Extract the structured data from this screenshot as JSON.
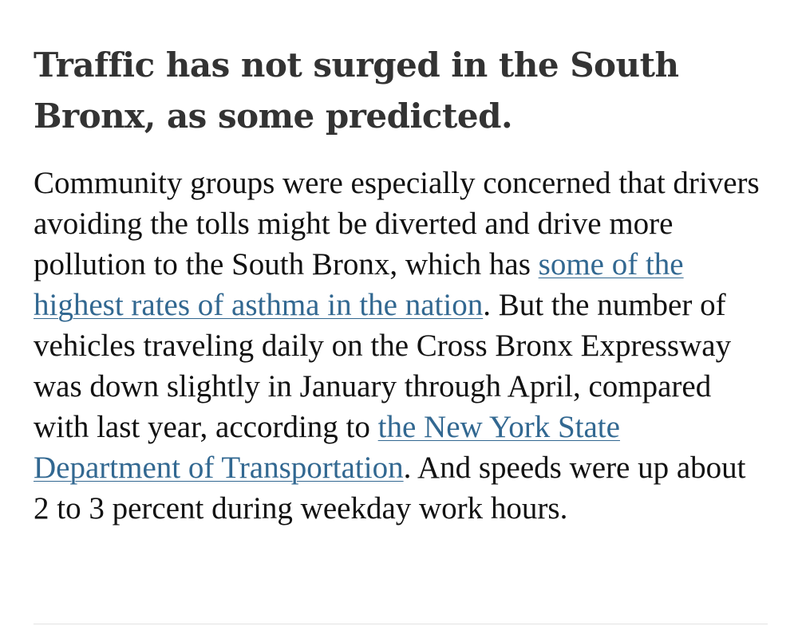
{
  "article": {
    "headline": "Traffic has not surged in the South Bronx, as some predicted.",
    "paragraph": {
      "text_1": "Community groups were especially concerned that drivers avoiding the tolls might be diverted and drive more pollution to the South Bronx, which has ",
      "link_1": "some of the highest rates of asthma in the nation",
      "text_2": ". But the number of vehicles traveling daily on the Cross Bronx Expressway was down slightly in January through April, compared with last year, according to ",
      "link_2": "the New York State Department of Transportation",
      "text_3": ". And speeds were up about 2 to 3 percent during weekday work hours."
    },
    "link_color": "#326891",
    "text_color": "#121212",
    "headline_color": "#333333"
  }
}
